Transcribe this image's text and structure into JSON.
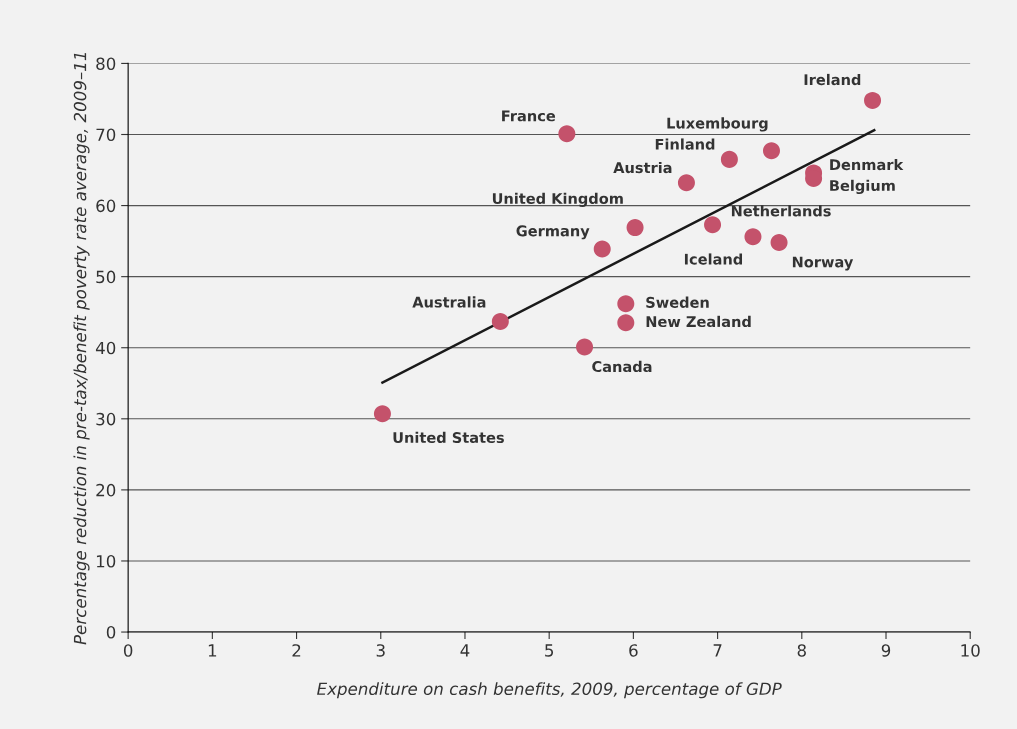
{
  "chart_data": {
    "type": "scatter",
    "xlabel": "Expenditure on cash benefits, 2009, percentage of GDP",
    "ylabel": "Percentage reduction in pre-tax/benefit poverty rate average, 2009–11",
    "xlim": [
      0,
      10
    ],
    "xticks": [
      0,
      1,
      2,
      3,
      4,
      5,
      6,
      7,
      8,
      9,
      10
    ],
    "ylim": [
      0,
      80
    ],
    "yticks": [
      0,
      10,
      20,
      30,
      40,
      50,
      60,
      70,
      80
    ],
    "grid": "y",
    "legend": false,
    "marker": "circle",
    "series": [
      {
        "color": "#c4526b",
        "x": [
          8.84,
          5.21,
          7.64,
          7.14,
          6.63,
          8.14,
          8.14,
          6.94,
          6.02,
          5.63,
          7.42,
          7.73,
          5.91,
          5.91,
          4.42,
          5.42,
          3.02
        ],
        "values": [
          74.8,
          70.1,
          67.7,
          66.5,
          63.2,
          64.6,
          63.8,
          57.3,
          56.9,
          53.9,
          55.6,
          54.8,
          46.2,
          43.5,
          43.7,
          40.1,
          30.7
        ]
      },
      {
        "type": "line",
        "color": "#1a1a1a",
        "marker": "none",
        "x": [
          3.02,
          8.86
        ],
        "values": [
          35.1,
          70.6
        ]
      }
    ],
    "annotations": [
      {
        "text": "Ireland",
        "x": 8.84,
        "y": 74.8
      },
      {
        "text": "France",
        "x": 5.21,
        "y": 70.1
      },
      {
        "text": "Luxembourg",
        "x": 7.64,
        "y": 67.7
      },
      {
        "text": "Finland",
        "x": 7.14,
        "y": 66.5
      },
      {
        "text": "Austria",
        "x": 6.63,
        "y": 63.2
      },
      {
        "text": "Denmark",
        "x": 8.14,
        "y": 64.6
      },
      {
        "text": "Belgium",
        "x": 8.14,
        "y": 63.8
      },
      {
        "text": "Netherlands",
        "x": 6.94,
        "y": 57.3
      },
      {
        "text": "United Kingdom",
        "x": 6.02,
        "y": 56.9
      },
      {
        "text": "Germany",
        "x": 5.63,
        "y": 53.9
      },
      {
        "text": "Iceland",
        "x": 7.42,
        "y": 55.6
      },
      {
        "text": "Norway",
        "x": 7.73,
        "y": 54.8
      },
      {
        "text": "Sweden",
        "x": 5.91,
        "y": 46.2
      },
      {
        "text": "New Zealand",
        "x": 5.91,
        "y": 43.5
      },
      {
        "text": "Australia",
        "x": 4.42,
        "y": 43.7
      },
      {
        "text": "Canada",
        "x": 5.42,
        "y": 40.1
      },
      {
        "text": "United States",
        "x": 3.02,
        "y": 30.7
      }
    ]
  }
}
